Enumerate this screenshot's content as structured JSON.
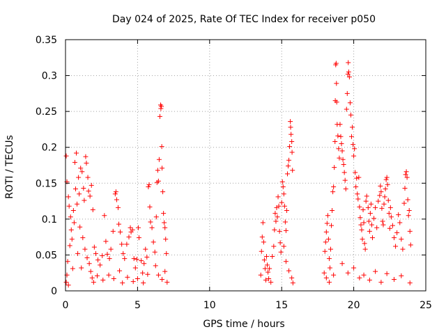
{
  "chart_data": {
    "type": "scatter",
    "title": "Day 024 of 2025, Rate Of TEC Index for receiver p050",
    "xlabel": "GPS time / hours",
    "ylabel": "ROTI / TECUs",
    "xlim": [
      0,
      25
    ],
    "ylim": [
      0,
      0.35
    ],
    "xticks": [
      0,
      5,
      10,
      15,
      20,
      25
    ],
    "xtick_labels": [
      "0",
      "5",
      "10",
      "15",
      "20",
      "25"
    ],
    "yticks": [
      0,
      0.05,
      0.1,
      0.15,
      0.2,
      0.25,
      0.3,
      0.35
    ],
    "ytick_labels": [
      "0",
      "0.05",
      "0.1",
      "0.15",
      "0.2",
      "0.25",
      "0.3",
      "0.35"
    ],
    "grid": true,
    "marker": "plus",
    "marker_color": "#ff0000",
    "series": [
      {
        "name": "ROTI",
        "points": [
          [
            0.05,
            0.188
          ],
          [
            0.1,
            0.152
          ],
          [
            0.2,
            0.131
          ],
          [
            0.25,
            0.118
          ],
          [
            0.35,
            0.103
          ],
          [
            0.4,
            0.085
          ],
          [
            0.45,
            0.072
          ],
          [
            0.3,
            0.063
          ],
          [
            0.15,
            0.041
          ],
          [
            0.1,
            0.022
          ],
          [
            0.05,
            0.012
          ],
          [
            0.2,
            0.008
          ],
          [
            0.5,
            0.031
          ],
          [
            0.6,
            0.095
          ],
          [
            0.65,
            0.179
          ],
          [
            0.7,
            0.142
          ],
          [
            0.8,
            0.121
          ],
          [
            0.55,
            0.112
          ],
          [
            0.75,
            0.192
          ],
          [
            0.9,
            0.158
          ],
          [
            0.95,
            0.135
          ],
          [
            1.05,
            0.171
          ],
          [
            1.15,
            0.166
          ],
          [
            1.25,
            0.143
          ],
          [
            1.3,
            0.126
          ],
          [
            1.4,
            0.187
          ],
          [
            1.45,
            0.178
          ],
          [
            1.55,
            0.158
          ],
          [
            1.6,
            0.139
          ],
          [
            1.7,
            0.132
          ],
          [
            1.8,
            0.147
          ],
          [
            1.9,
            0.113
          ],
          [
            1.0,
            0.089
          ],
          [
            1.2,
            0.074
          ],
          [
            1.35,
            0.058
          ],
          [
            1.5,
            0.046
          ],
          [
            1.65,
            0.038
          ],
          [
            1.75,
            0.027
          ],
          [
            1.85,
            0.018
          ],
          [
            1.95,
            0.012
          ],
          [
            0.85,
            0.052
          ],
          [
            1.1,
            0.032
          ],
          [
            2.0,
            0.061
          ],
          [
            2.1,
            0.052
          ],
          [
            2.25,
            0.043
          ],
          [
            2.4,
            0.036
          ],
          [
            2.55,
            0.049
          ],
          [
            2.7,
            0.105
          ],
          [
            2.8,
            0.069
          ],
          [
            2.9,
            0.051
          ],
          [
            3.05,
            0.045
          ],
          [
            3.15,
            0.058
          ],
          [
            3.3,
            0.083
          ],
          [
            3.45,
            0.135
          ],
          [
            3.5,
            0.138
          ],
          [
            3.55,
            0.127
          ],
          [
            3.65,
            0.116
          ],
          [
            3.7,
            0.093
          ],
          [
            3.8,
            0.082
          ],
          [
            3.9,
            0.065
          ],
          [
            4.0,
            0.052
          ],
          [
            2.2,
            0.021
          ],
          [
            2.6,
            0.015
          ],
          [
            3.0,
            0.022
          ],
          [
            3.35,
            0.017
          ],
          [
            3.75,
            0.028
          ],
          [
            3.95,
            0.011
          ],
          [
            4.1,
            0.045
          ],
          [
            4.25,
            0.065
          ],
          [
            4.4,
            0.075
          ],
          [
            4.5,
            0.088
          ],
          [
            4.55,
            0.082
          ],
          [
            4.65,
            0.085
          ],
          [
            4.75,
            0.045
          ],
          [
            4.85,
            0.032
          ],
          [
            4.95,
            0.044
          ],
          [
            5.05,
            0.088
          ],
          [
            5.1,
            0.074
          ],
          [
            5.25,
            0.042
          ],
          [
            5.35,
            0.025
          ],
          [
            5.45,
            0.038
          ],
          [
            5.55,
            0.058
          ],
          [
            5.65,
            0.047
          ],
          [
            5.75,
            0.145
          ],
          [
            5.8,
            0.148
          ],
          [
            5.85,
            0.117
          ],
          [
            5.9,
            0.096
          ],
          [
            6.0,
            0.088
          ],
          [
            6.1,
            0.068
          ],
          [
            6.2,
            0.054
          ],
          [
            4.3,
            0.019
          ],
          [
            4.7,
            0.013
          ],
          [
            5.0,
            0.017
          ],
          [
            5.4,
            0.011
          ],
          [
            5.7,
            0.023
          ],
          [
            6.3,
            0.103
          ],
          [
            6.35,
            0.151
          ],
          [
            6.4,
            0.168
          ],
          [
            6.45,
            0.153
          ],
          [
            6.5,
            0.183
          ],
          [
            6.55,
            0.243
          ],
          [
            6.6,
            0.259
          ],
          [
            6.62,
            0.254
          ],
          [
            6.65,
            0.257
          ],
          [
            6.68,
            0.201
          ],
          [
            6.7,
            0.171
          ],
          [
            6.75,
            0.138
          ],
          [
            6.8,
            0.108
          ],
          [
            6.85,
            0.095
          ],
          [
            6.9,
            0.088
          ],
          [
            6.95,
            0.072
          ],
          [
            7.0,
            0.052
          ],
          [
            6.25,
            0.035
          ],
          [
            6.45,
            0.022
          ],
          [
            6.7,
            0.016
          ],
          [
            6.9,
            0.027
          ],
          [
            7.05,
            0.012
          ],
          [
            13.55,
            0.022
          ],
          [
            13.6,
            0.055
          ],
          [
            13.65,
            0.075
          ],
          [
            13.7,
            0.095
          ],
          [
            13.75,
            0.068
          ],
          [
            13.8,
            0.043
          ],
          [
            13.85,
            0.031
          ],
          [
            13.9,
            0.015
          ],
          [
            13.95,
            0.048
          ],
          [
            14.0,
            0.036
          ],
          [
            14.05,
            0.026
          ],
          [
            14.1,
            0.017
          ],
          [
            14.15,
            0.031
          ],
          [
            14.25,
            0.012
          ],
          [
            14.35,
            0.048
          ],
          [
            14.45,
            0.062
          ],
          [
            14.5,
            0.085
          ],
          [
            14.55,
            0.108
          ],
          [
            14.6,
            0.097
          ],
          [
            14.65,
            0.116
          ],
          [
            14.7,
            0.103
          ],
          [
            14.75,
            0.131
          ],
          [
            14.8,
            0.118
          ],
          [
            14.85,
            0.083
          ],
          [
            14.9,
            0.067
          ],
          [
            14.95,
            0.054
          ],
          [
            15.0,
            0.123
          ],
          [
            15.05,
            0.152
          ],
          [
            15.1,
            0.145
          ],
          [
            15.15,
            0.135
          ],
          [
            15.2,
            0.118
          ],
          [
            15.25,
            0.096
          ],
          [
            15.3,
            0.084
          ],
          [
            15.35,
            0.112
          ],
          [
            15.4,
            0.163
          ],
          [
            15.45,
            0.174
          ],
          [
            15.5,
            0.182
          ],
          [
            15.55,
            0.201
          ],
          [
            15.6,
            0.236
          ],
          [
            15.62,
            0.228
          ],
          [
            15.65,
            0.218
          ],
          [
            15.7,
            0.208
          ],
          [
            15.72,
            0.193
          ],
          [
            15.75,
            0.168
          ],
          [
            15.15,
            0.062
          ],
          [
            15.3,
            0.041
          ],
          [
            15.5,
            0.028
          ],
          [
            15.7,
            0.018
          ],
          [
            15.78,
            0.011
          ],
          [
            17.95,
            0.025
          ],
          [
            18.0,
            0.055
          ],
          [
            18.05,
            0.068
          ],
          [
            18.1,
            0.082
          ],
          [
            18.15,
            0.094
          ],
          [
            18.2,
            0.105
          ],
          [
            18.25,
            0.072
          ],
          [
            18.3,
            0.045
          ],
          [
            18.35,
            0.032
          ],
          [
            18.4,
            0.058
          ],
          [
            18.45,
            0.091
          ],
          [
            18.5,
            0.112
          ],
          [
            18.55,
            0.138
          ],
          [
            18.6,
            0.145
          ],
          [
            18.65,
            0.172
          ],
          [
            18.7,
            0.208
          ],
          [
            18.72,
            0.265
          ],
          [
            18.75,
            0.315
          ],
          [
            18.78,
            0.317
          ],
          [
            18.8,
            0.289
          ],
          [
            18.82,
            0.263
          ],
          [
            18.85,
            0.232
          ],
          [
            18.9,
            0.216
          ],
          [
            18.95,
            0.198
          ],
          [
            19.0,
            0.185
          ],
          [
            18.1,
            0.018
          ],
          [
            18.3,
            0.012
          ],
          [
            18.6,
            0.022
          ],
          [
            19.05,
            0.232
          ],
          [
            19.1,
            0.215
          ],
          [
            19.15,
            0.205
          ],
          [
            19.2,
            0.195
          ],
          [
            19.25,
            0.183
          ],
          [
            19.3,
            0.176
          ],
          [
            19.35,
            0.165
          ],
          [
            19.4,
            0.154
          ],
          [
            19.45,
            0.142
          ],
          [
            19.5,
            0.253
          ],
          [
            19.55,
            0.275
          ],
          [
            19.6,
            0.302
          ],
          [
            19.62,
            0.318
          ],
          [
            19.65,
            0.305
          ],
          [
            19.7,
            0.298
          ],
          [
            19.75,
            0.262
          ],
          [
            19.8,
            0.245
          ],
          [
            19.85,
            0.215
          ],
          [
            19.9,
            0.228
          ],
          [
            19.95,
            0.204
          ],
          [
            20.0,
            0.188
          ],
          [
            20.05,
            0.198
          ],
          [
            20.1,
            0.165
          ],
          [
            20.15,
            0.145
          ],
          [
            20.2,
            0.157
          ],
          [
            20.25,
            0.135
          ],
          [
            20.3,
            0.128
          ],
          [
            20.35,
            0.158
          ],
          [
            20.4,
            0.117
          ],
          [
            20.45,
            0.102
          ],
          [
            20.5,
            0.092
          ],
          [
            19.2,
            0.038
          ],
          [
            19.6,
            0.025
          ],
          [
            20.0,
            0.032
          ],
          [
            20.4,
            0.018
          ],
          [
            20.55,
            0.085
          ],
          [
            20.6,
            0.072
          ],
          [
            20.65,
            0.113
          ],
          [
            20.7,
            0.095
          ],
          [
            20.75,
            0.066
          ],
          [
            20.8,
            0.058
          ],
          [
            20.85,
            0.125
          ],
          [
            20.9,
            0.132
          ],
          [
            21.0,
            0.116
          ],
          [
            21.05,
            0.097
          ],
          [
            21.1,
            0.083
          ],
          [
            21.15,
            0.108
          ],
          [
            21.2,
            0.121
          ],
          [
            21.25,
            0.092
          ],
          [
            21.3,
            0.074
          ],
          [
            21.4,
            0.101
          ],
          [
            21.5,
            0.116
          ],
          [
            21.6,
            0.088
          ],
          [
            21.7,
            0.125
          ],
          [
            21.8,
            0.133
          ],
          [
            21.85,
            0.146
          ],
          [
            21.9,
            0.138
          ],
          [
            21.95,
            0.115
          ],
          [
            22.0,
            0.097
          ],
          [
            20.7,
            0.022
          ],
          [
            21.1,
            0.015
          ],
          [
            21.5,
            0.027
          ],
          [
            21.9,
            0.012
          ],
          [
            22.05,
            0.092
          ],
          [
            22.1,
            0.121
          ],
          [
            22.15,
            0.131
          ],
          [
            22.2,
            0.142
          ],
          [
            22.25,
            0.155
          ],
          [
            22.3,
            0.158
          ],
          [
            22.35,
            0.148
          ],
          [
            22.4,
            0.126
          ],
          [
            22.45,
            0.108
          ],
          [
            22.5,
            0.087
          ],
          [
            22.55,
            0.116
          ],
          [
            22.6,
            0.103
          ],
          [
            22.7,
            0.091
          ],
          [
            22.8,
            0.074
          ],
          [
            22.9,
            0.062
          ],
          [
            23.0,
            0.081
          ],
          [
            23.1,
            0.106
          ],
          [
            23.2,
            0.095
          ],
          [
            23.3,
            0.072
          ],
          [
            23.4,
            0.058
          ],
          [
            23.5,
            0.122
          ],
          [
            23.55,
            0.143
          ],
          [
            23.6,
            0.162
          ],
          [
            23.65,
            0.166
          ],
          [
            23.7,
            0.158
          ],
          [
            23.75,
            0.127
          ],
          [
            23.8,
            0.105
          ],
          [
            23.85,
            0.112
          ],
          [
            23.9,
            0.083
          ],
          [
            23.95,
            0.064
          ],
          [
            22.3,
            0.024
          ],
          [
            22.8,
            0.016
          ],
          [
            23.3,
            0.021
          ],
          [
            23.9,
            0.011
          ]
        ]
      }
    ]
  }
}
